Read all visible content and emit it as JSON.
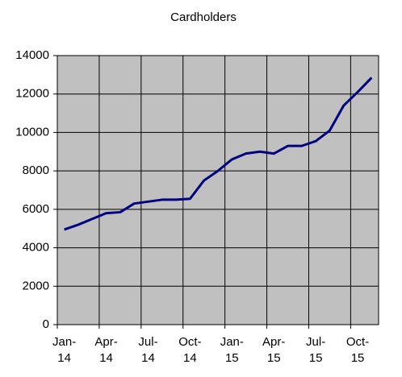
{
  "chart_data": {
    "type": "line",
    "title": "Cardholders",
    "categories": [
      "Jan-14",
      null,
      null,
      "Apr-14",
      null,
      null,
      "Jul-14",
      null,
      null,
      "Oct-14",
      null,
      null,
      "Jan-15",
      null,
      null,
      "Apr-15",
      null,
      null,
      "Jul-15",
      null,
      null,
      "Oct-15",
      null
    ],
    "series": [
      {
        "name": "Cardholders",
        "color": "#000080",
        "values": [
          4950,
          5200,
          5500,
          5800,
          5850,
          6300,
          6400,
          6500,
          6500,
          6550,
          7500,
          8000,
          8600,
          8900,
          9000,
          8900,
          9300,
          9300,
          9550,
          10100,
          11400,
          12100,
          12850
        ]
      }
    ],
    "ylim": [
      0,
      14000
    ],
    "yticks": [
      0,
      2000,
      4000,
      6000,
      8000,
      10000,
      12000,
      14000
    ],
    "grid": true,
    "background": "#c0c0c0"
  }
}
